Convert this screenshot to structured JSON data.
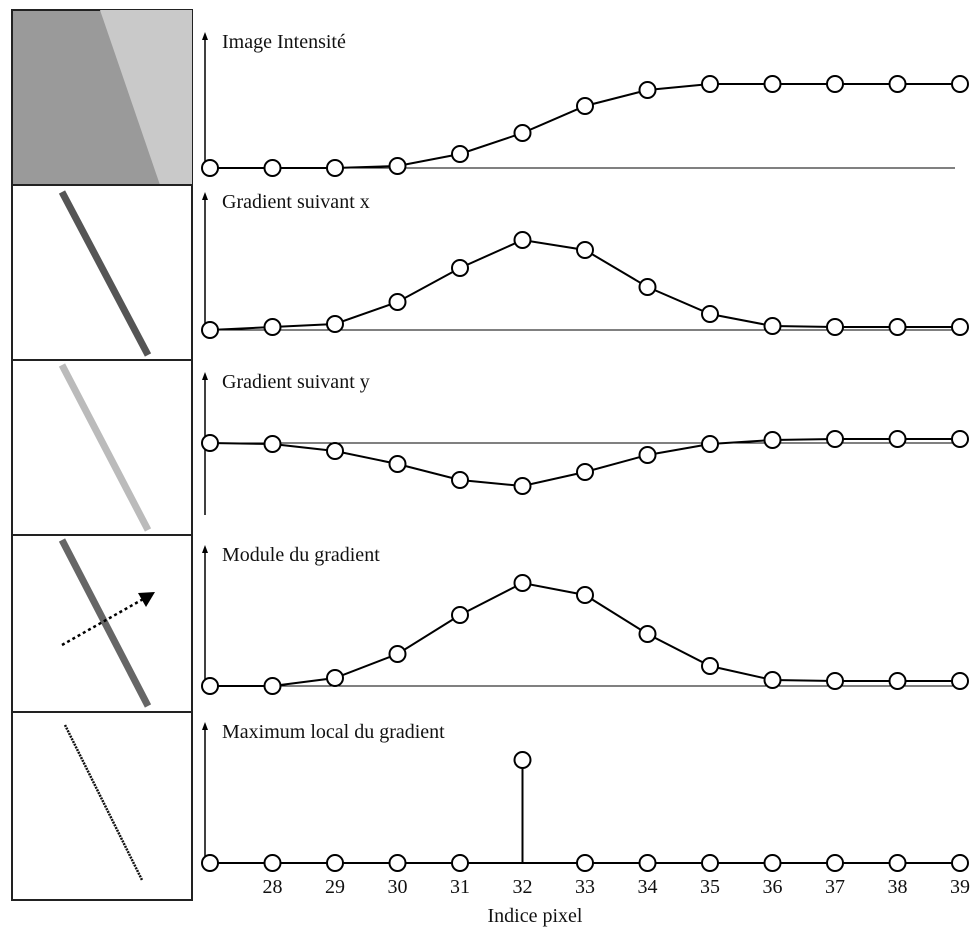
{
  "chart_data": [
    {
      "type": "line",
      "title": "Image Intensité",
      "x": [
        27,
        28,
        29,
        30,
        31,
        32,
        33,
        34,
        35,
        36,
        37,
        38,
        39
      ],
      "values": [
        0,
        0,
        0,
        2,
        14,
        35,
        62,
        78,
        84,
        84,
        84,
        84,
        84
      ],
      "xlim": [
        27,
        39
      ],
      "ylim": [
        0,
        120
      ]
    },
    {
      "type": "line",
      "title": "Gradient suivant x",
      "x": [
        27,
        28,
        29,
        30,
        31,
        32,
        33,
        34,
        35,
        36,
        37,
        38,
        39
      ],
      "values": [
        0,
        3,
        6,
        28,
        62,
        90,
        80,
        43,
        16,
        4,
        3,
        3,
        3
      ],
      "xlim": [
        27,
        39
      ],
      "ylim": [
        0,
        120
      ]
    },
    {
      "type": "line",
      "title": "Gradient suivant y",
      "x": [
        27,
        28,
        29,
        30,
        31,
        32,
        33,
        34,
        35,
        36,
        37,
        38,
        39
      ],
      "values": [
        0,
        -1,
        -8,
        -21,
        -37,
        -43,
        -29,
        -12,
        -1,
        3,
        4,
        4,
        4
      ],
      "xlim": [
        27,
        39
      ],
      "ylim": [
        -50,
        60
      ]
    },
    {
      "type": "line",
      "title": "Module du gradient",
      "x": [
        27,
        28,
        29,
        30,
        31,
        32,
        33,
        34,
        35,
        36,
        37,
        38,
        39
      ],
      "values": [
        0,
        0,
        8,
        32,
        71,
        103,
        91,
        52,
        20,
        6,
        5,
        5,
        5
      ],
      "xlim": [
        27,
        39
      ],
      "ylim": [
        0,
        130
      ]
    },
    {
      "type": "stem",
      "title": "Maximum local du gradient",
      "x": [
        27,
        28,
        29,
        30,
        31,
        32,
        33,
        34,
        35,
        36,
        37,
        38,
        39
      ],
      "values": [
        0,
        0,
        0,
        0,
        0,
        103,
        0,
        0,
        0,
        0,
        0,
        0,
        0
      ],
      "xlim": [
        27,
        39
      ],
      "ylim": [
        0,
        130
      ],
      "xticks": [
        28,
        29,
        30,
        31,
        32,
        33,
        34,
        35,
        36,
        37,
        38,
        39
      ],
      "xlabel": "Indice pixel"
    }
  ]
}
